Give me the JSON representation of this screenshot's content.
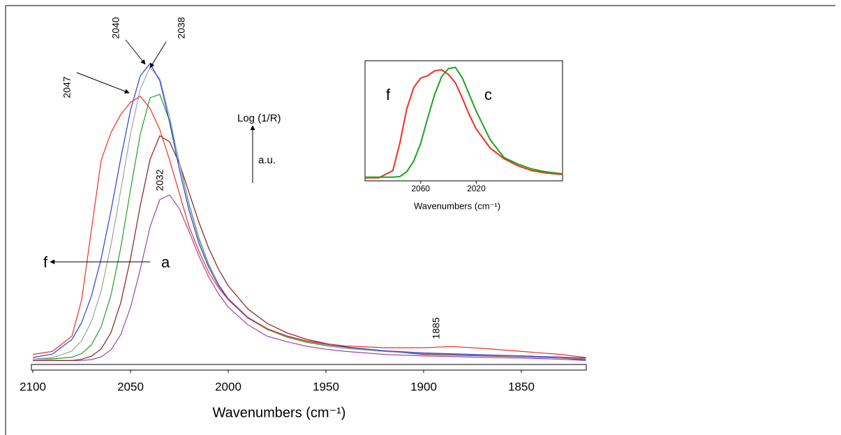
{
  "chart_data": [
    {
      "type": "line",
      "xlabel": "Wavenumbers (cm⁻¹)",
      "x": [
        2100,
        2090,
        2080,
        2075,
        2070,
        2065,
        2060,
        2055,
        2050,
        2045,
        2040,
        2035,
        2030,
        2025,
        2020,
        2015,
        2010,
        2005,
        2000,
        1990,
        1980,
        1970,
        1960,
        1950,
        1940,
        1920,
        1900,
        1885,
        1870,
        1850,
        1830,
        1817
      ],
      "xlim": [
        2100,
        1817
      ],
      "xticks": [
        2100,
        2050,
        2000,
        1950,
        1900,
        1850
      ],
      "ylim": [
        0,
        1
      ],
      "series": [
        {
          "color": "#a040b0",
          "values": [
            0.02,
            0.02,
            0.02,
            0.02,
            0.023,
            0.032,
            0.055,
            0.105,
            0.195,
            0.32,
            0.46,
            0.55,
            0.565,
            0.52,
            0.444,
            0.364,
            0.295,
            0.24,
            0.196,
            0.138,
            0.1,
            0.082,
            0.067,
            0.057,
            0.05,
            0.04,
            0.035,
            0.033,
            0.03,
            0.028,
            0.024,
            0.02
          ]
        },
        {
          "color": "#8b1a1a",
          "values": [
            0.02,
            0.02,
            0.02,
            0.024,
            0.034,
            0.058,
            0.112,
            0.21,
            0.356,
            0.53,
            0.682,
            0.76,
            0.74,
            0.669,
            0.572,
            0.475,
            0.39,
            0.321,
            0.266,
            0.19,
            0.142,
            0.111,
            0.09,
            0.076,
            0.065,
            0.051,
            0.04,
            0.038,
            0.035,
            0.032,
            0.028,
            0.022
          ]
        },
        {
          "color": "#20a020",
          "values": [
            0.025,
            0.025,
            0.031,
            0.043,
            0.071,
            0.131,
            0.235,
            0.391,
            0.582,
            0.765,
            0.885,
            0.896,
            0.809,
            0.672,
            0.535,
            0.423,
            0.337,
            0.272,
            0.224,
            0.16,
            0.122,
            0.097,
            0.08,
            0.069,
            0.06,
            0.05,
            0.043,
            0.04,
            0.038,
            0.034,
            0.03,
            0.025
          ]
        },
        {
          "color": "#a0a0a0",
          "values": [
            0.025,
            0.029,
            0.051,
            0.085,
            0.148,
            0.25,
            0.4,
            0.58,
            0.766,
            0.914,
            0.985,
            0.948,
            0.823,
            0.669,
            0.53,
            0.418,
            0.334,
            0.272,
            0.225,
            0.162,
            0.124,
            0.099,
            0.083,
            0.071,
            0.06,
            0.05,
            0.043,
            0.04,
            0.037,
            0.033,
            0.029,
            0.025
          ]
        },
        {
          "color": "#2040e0",
          "values": [
            0.03,
            0.041,
            0.089,
            0.145,
            0.232,
            0.356,
            0.513,
            0.685,
            0.844,
            0.957,
            0.998,
            0.941,
            0.804,
            0.649,
            0.513,
            0.406,
            0.327,
            0.267,
            0.222,
            0.162,
            0.125,
            0.101,
            0.085,
            0.074,
            0.064,
            0.052,
            0.045,
            0.042,
            0.039,
            0.035,
            0.031,
            0.028
          ]
        },
        {
          "color": "#f03020",
          "values": [
            0.04,
            0.05,
            0.1,
            0.22,
            0.45,
            0.68,
            0.77,
            0.83,
            0.87,
            0.89,
            0.85,
            0.78,
            0.68,
            0.57,
            0.46,
            0.38,
            0.31,
            0.26,
            0.22,
            0.16,
            0.125,
            0.1,
            0.085,
            0.075,
            0.068,
            0.062,
            0.062,
            0.066,
            0.06,
            0.05,
            0.04,
            0.03
          ]
        }
      ],
      "annotations": [
        "2047",
        "2040",
        "2038",
        "2032",
        "1885",
        "f",
        "a",
        "Log (1/R)",
        "a.u."
      ]
    },
    {
      "type": "line",
      "xlabel": "Wavenumbers (cm⁻¹)",
      "x": [
        2100,
        2090,
        2080,
        2075,
        2070,
        2065,
        2060,
        2055,
        2050,
        2045,
        2040,
        2035,
        2030,
        2025,
        2020,
        2010,
        2000,
        1990,
        1980,
        1970,
        1958
      ],
      "xlim": [
        2100,
        1958
      ],
      "xticks": [
        2060,
        2020
      ],
      "ylim": [
        0,
        1
      ],
      "series": [
        {
          "color": "#f03020",
          "values": [
            0.02,
            0.02,
            0.08,
            0.31,
            0.6,
            0.78,
            0.86,
            0.88,
            0.92,
            0.93,
            0.89,
            0.82,
            0.69,
            0.55,
            0.43,
            0.27,
            0.18,
            0.12,
            0.08,
            0.06,
            0.047
          ]
        },
        {
          "color": "#20a020",
          "values": [
            0.025,
            0.025,
            0.025,
            0.03,
            0.07,
            0.16,
            0.31,
            0.52,
            0.72,
            0.87,
            0.94,
            0.95,
            0.86,
            0.72,
            0.58,
            0.34,
            0.19,
            0.135,
            0.094,
            0.07,
            0.053
          ]
        }
      ],
      "annotations": [
        "f",
        "c"
      ]
    }
  ]
}
